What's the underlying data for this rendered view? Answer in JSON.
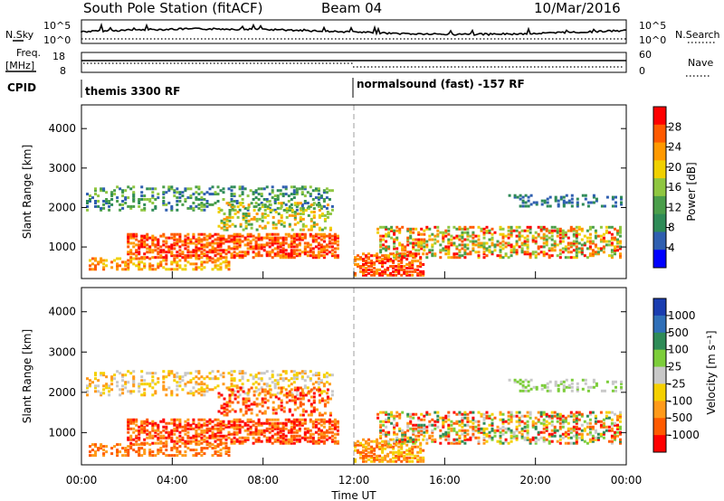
{
  "title": {
    "station": "South Pole Station (fitACF)",
    "beam": "Beam 04",
    "date": "10/Mar/2016"
  },
  "header": {
    "nsky_label": "N.Sky",
    "nsky_ticks": [
      "10^5",
      "10^0"
    ],
    "nsearch_label": "N.Search",
    "nsearch_ticks": [
      "10^5",
      "10^0"
    ],
    "freq_label_1": "Freq.",
    "freq_label_2": "[MHz]",
    "freq_ticks": [
      "18",
      "8"
    ],
    "nave_label": "Nave",
    "nave_ticks": [
      "60",
      "0"
    ],
    "cpid_label": "CPID",
    "cpid_1": "themis 3300 RF",
    "cpid_2": "normalsound (fast) -157 RF"
  },
  "chart_data": [
    {
      "type": "heatmap",
      "name": "power",
      "ylabel": "Slant Range [km]",
      "ylim": [
        200,
        4600
      ],
      "yticks": [
        "1000",
        "2000",
        "3000",
        "4000"
      ],
      "xlim": [
        0,
        24
      ],
      "colorbar": {
        "label": "Power [dB]",
        "ticks": [
          "4",
          "8",
          "12",
          "16",
          "20",
          "24",
          "28"
        ],
        "range": [
          0,
          32
        ]
      },
      "colors": [
        "#0000ff",
        "#2f5fb0",
        "#2e8b57",
        "#4a9e4a",
        "#8fc640",
        "#f0d000",
        "#ff9900",
        "#ff5a00",
        "#ff0000"
      ],
      "marker_time": 12
    },
    {
      "type": "heatmap",
      "name": "velocity",
      "ylabel": "Slant Range [km]",
      "ylim": [
        200,
        4600
      ],
      "yticks": [
        "1000",
        "2000",
        "3000",
        "4000"
      ],
      "xlim": [
        0,
        24
      ],
      "xticks": [
        "00:00",
        "04:00",
        "08:00",
        "12:00",
        "16:00",
        "20:00",
        "00:00"
      ],
      "xlabel": "Time UT",
      "colorbar": {
        "label": "Velocity [m s⁻¹]",
        "ticks": [
          "1000",
          "500",
          "100",
          "25",
          "-25",
          "-100",
          "-500",
          "-1000"
        ]
      },
      "colors": [
        "#1a3db0",
        "#2f6fb8",
        "#2e8b57",
        "#7ccd3a",
        "#c8c8c8",
        "#f5d000",
        "#ff9a1a",
        "#ff5a00",
        "#ff0000"
      ],
      "marker_time": 12
    }
  ]
}
